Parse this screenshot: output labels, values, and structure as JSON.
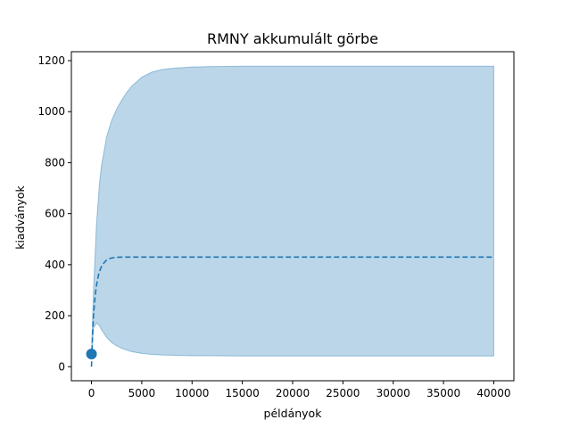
{
  "chart_data": {
    "type": "line",
    "title": "RMNY akkumulált görbe",
    "xlabel": "példányok",
    "ylabel": "kiadványok",
    "xlim": [
      -2000,
      42000
    ],
    "ylim": [
      -55,
      1235
    ],
    "xticks": [
      0,
      5000,
      10000,
      15000,
      20000,
      25000,
      30000,
      35000,
      40000
    ],
    "yticks": [
      0,
      200,
      400,
      600,
      800,
      1000,
      1200
    ],
    "grid": false,
    "colors": {
      "line": "#1f77b4",
      "band_fill": "#1f77b4",
      "band_opacity": 0.3,
      "point": "#1f77b4"
    },
    "series": [
      {
        "kind": "band",
        "x": [
          0,
          200,
          500,
          800,
          1000,
          1500,
          2000,
          2500,
          3000,
          3500,
          4000,
          5000,
          6000,
          7000,
          8000,
          10000,
          12000,
          15000,
          20000,
          30000,
          40000
        ],
        "lower": [
          50,
          150,
          172,
          160,
          145,
          115,
          95,
          82,
          72,
          65,
          59,
          52,
          48,
          46,
          45,
          43,
          43,
          42,
          42,
          42,
          42
        ],
        "upper": [
          50,
          300,
          560,
          720,
          790,
          900,
          965,
          1010,
          1045,
          1075,
          1100,
          1135,
          1155,
          1165,
          1170,
          1175,
          1177,
          1178,
          1178,
          1178,
          1178
        ]
      },
      {
        "kind": "line",
        "style": "dashed",
        "x": [
          0,
          100,
          200,
          300,
          400,
          500,
          700,
          900,
          1100,
          1300,
          1500,
          1800,
          2100,
          2500,
          3000,
          4000,
          5000,
          10000,
          20000,
          40000
        ],
        "y": [
          0,
          120,
          200,
          250,
          290,
          320,
          360,
          385,
          400,
          410,
          418,
          424,
          427,
          429,
          430,
          430,
          430,
          430,
          430,
          430
        ]
      },
      {
        "kind": "point",
        "x": [
          0
        ],
        "y": [
          50
        ]
      }
    ]
  }
}
